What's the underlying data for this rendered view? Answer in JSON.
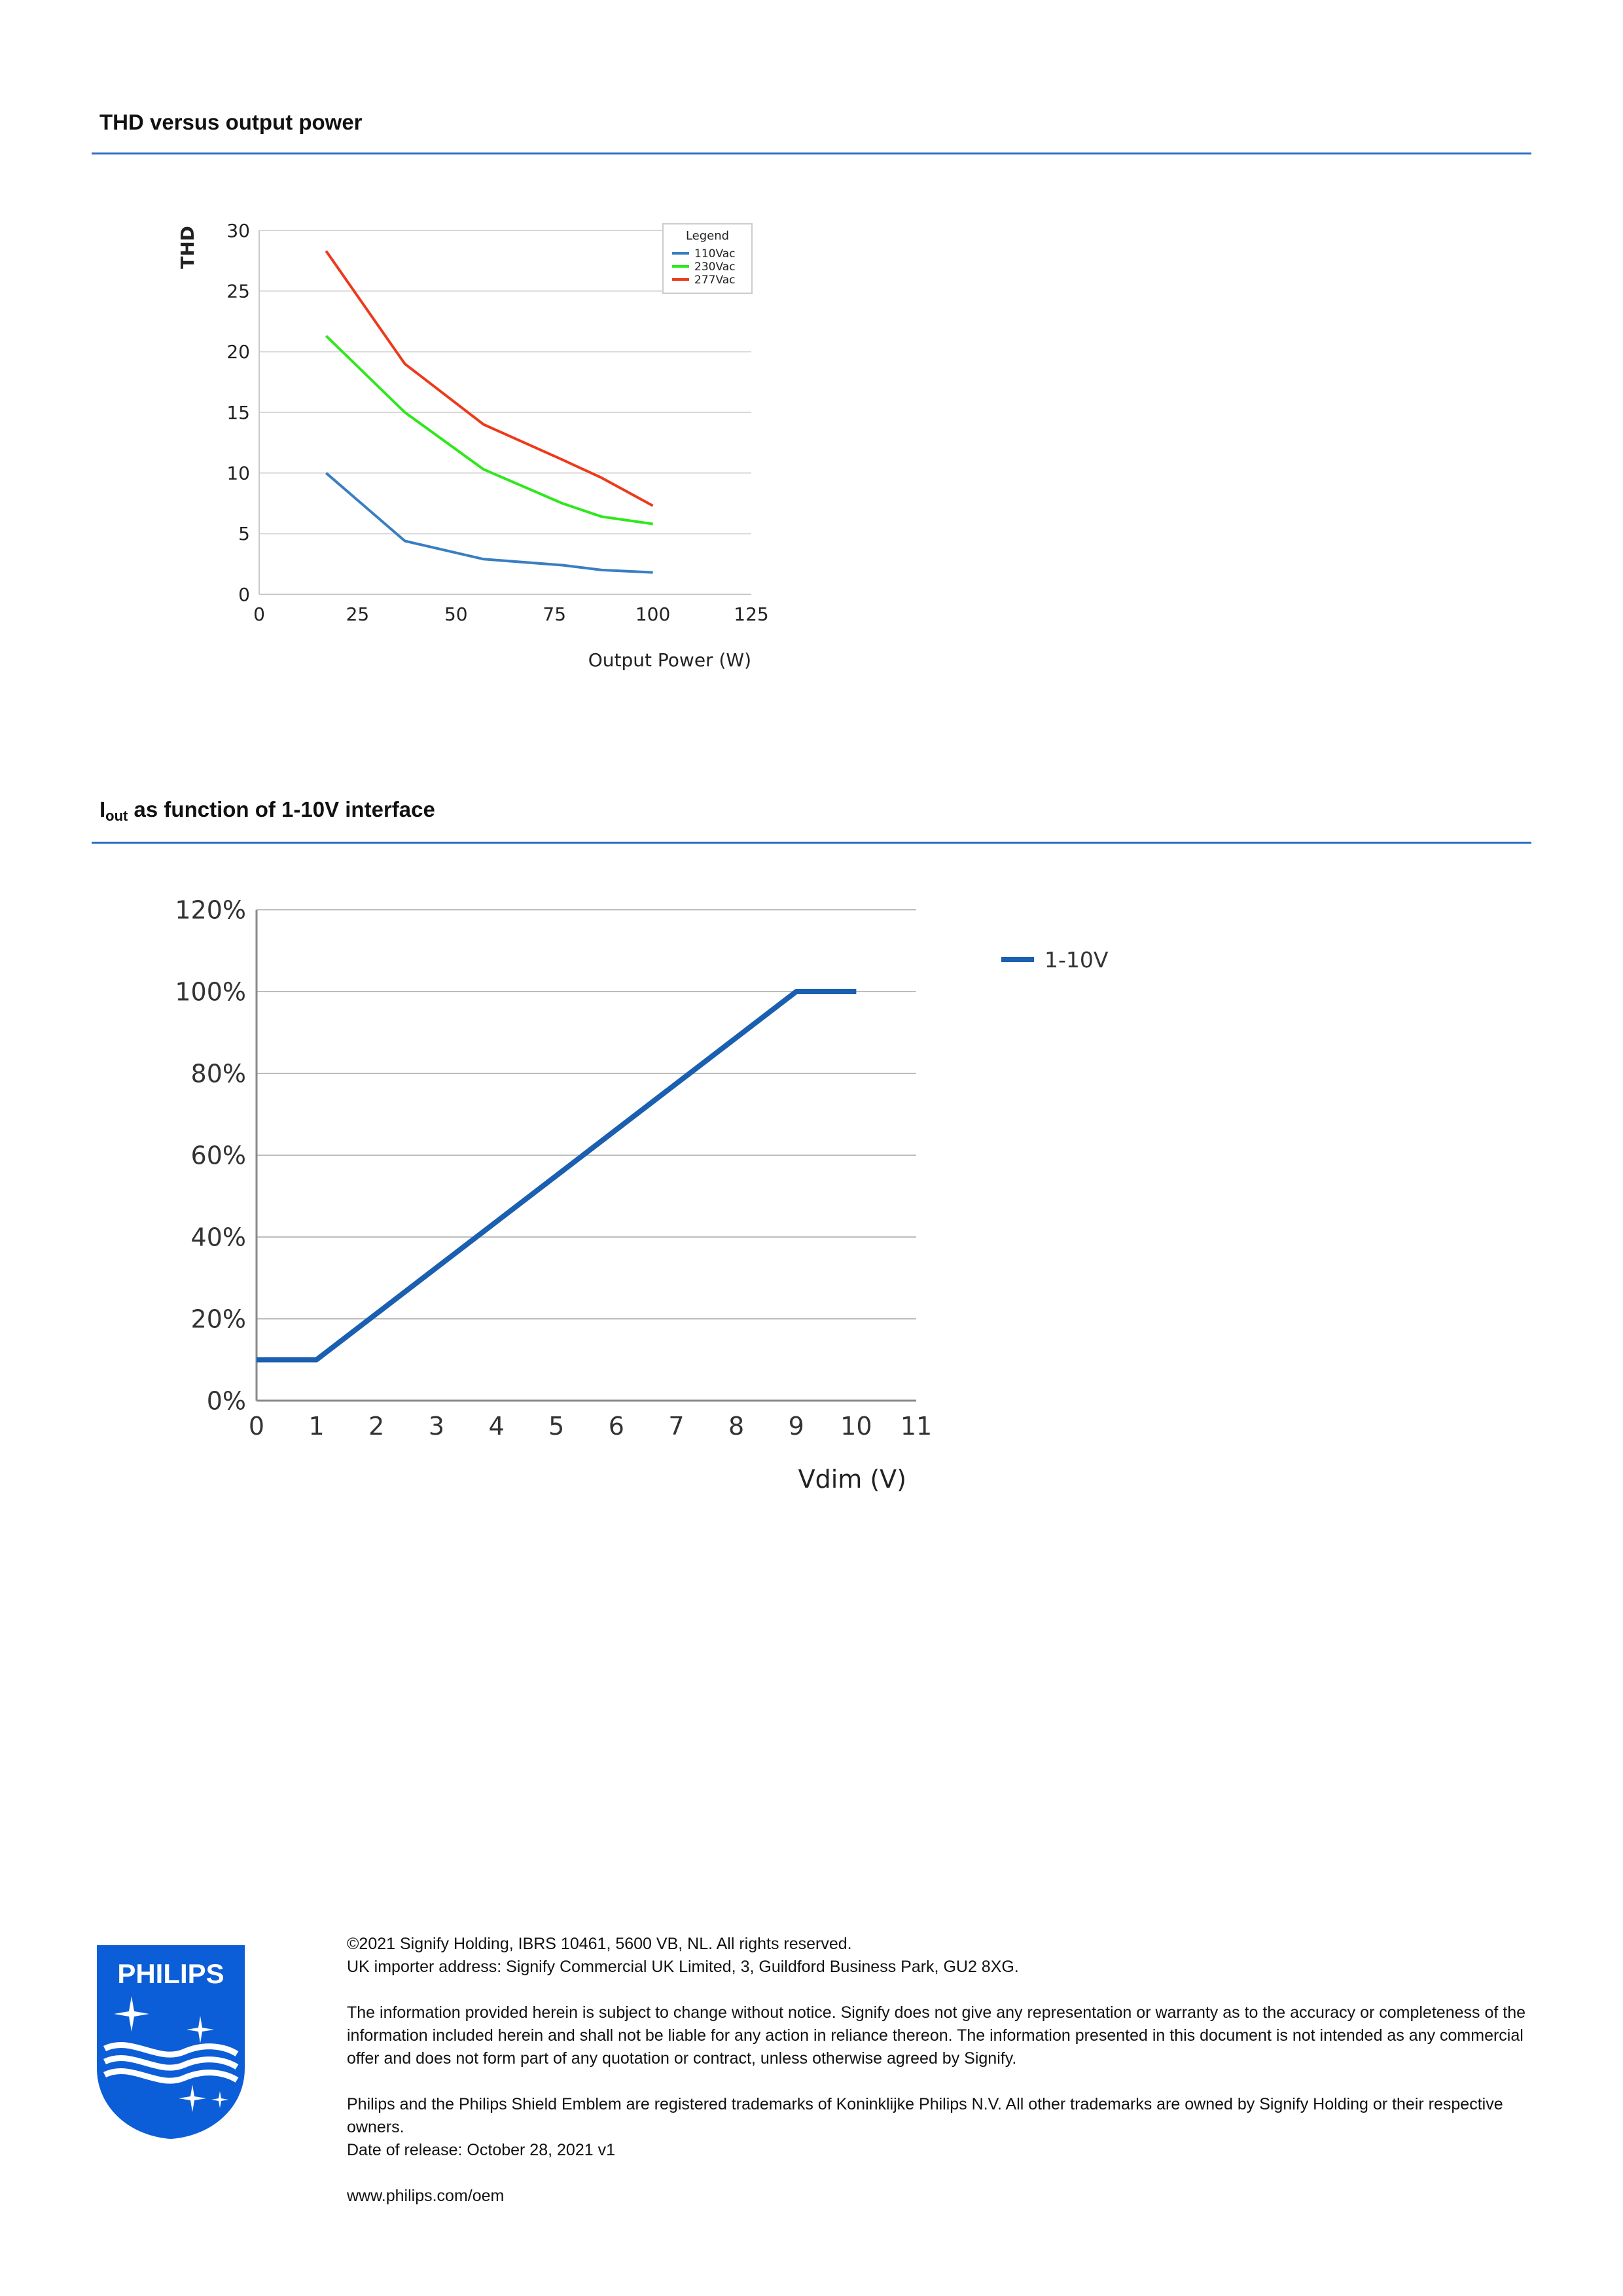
{
  "section1": {
    "title": "THD versus output power"
  },
  "section2": {
    "title_main": "I",
    "title_sub": "out",
    "title_rest": " as function of 1-10V interface"
  },
  "chart_data": [
    {
      "type": "line",
      "xlabel": "Output Power (W)",
      "ylabel": "THD",
      "xlim": [
        0,
        125
      ],
      "ylim": [
        0,
        30
      ],
      "x_ticks": [
        0,
        25,
        50,
        75,
        100,
        125
      ],
      "y_ticks": [
        0,
        5,
        10,
        15,
        20,
        25,
        30
      ],
      "x_tick_labels": [
        "0",
        "25",
        "50",
        "75",
        "100",
        "125"
      ],
      "y_tick_labels": [
        "0",
        "5",
        "10",
        "15",
        "20",
        "25",
        "30"
      ],
      "grid": "horizontal",
      "legend_title": "Legend",
      "legend_position": "top-right",
      "series": [
        {
          "name": "110Vac",
          "color": "#3a7ec2",
          "x": [
            17,
            37,
            57,
            77,
            87,
            100
          ],
          "y": [
            10.0,
            4.4,
            2.9,
            2.4,
            2.0,
            1.8
          ]
        },
        {
          "name": "230Vac",
          "color": "#2ee81c",
          "x": [
            17,
            37,
            57,
            77,
            87,
            100
          ],
          "y": [
            21.3,
            15.0,
            10.3,
            7.5,
            6.4,
            5.8
          ]
        },
        {
          "name": "277Vac",
          "color": "#ec3b1b",
          "x": [
            17,
            37,
            57,
            77,
            87,
            100
          ],
          "y": [
            28.3,
            19.0,
            14.0,
            11.1,
            9.6,
            7.3
          ]
        }
      ]
    },
    {
      "type": "line",
      "xlabel": "Vdim (V)",
      "xlim": [
        0,
        11
      ],
      "ylim": [
        0,
        120
      ],
      "x_ticks": [
        0,
        1,
        2,
        3,
        4,
        5,
        6,
        7,
        8,
        9,
        10,
        11
      ],
      "y_ticks": [
        0,
        20,
        40,
        60,
        80,
        100,
        120
      ],
      "x_tick_labels": [
        "0",
        "1",
        "2",
        "3",
        "4",
        "5",
        "6",
        "7",
        "8",
        "9",
        "10",
        "11"
      ],
      "y_tick_labels": [
        "0%",
        "20%",
        "40%",
        "60%",
        "80%",
        "100%",
        "120%"
      ],
      "grid": "horizontal",
      "legend_position": "right",
      "series": [
        {
          "name": "1-10V",
          "color": "#1a5fb0",
          "x": [
            0,
            1,
            9,
            10
          ],
          "y": [
            10,
            10,
            100,
            100
          ]
        }
      ]
    }
  ],
  "footer": {
    "logo_text": "PHILIPS",
    "copyright": "©2021 Signify Holding, IBRS 10461, 5600 VB, NL. All rights reserved.",
    "uk_importer": "UK importer address: Signify Commercial UK Limited, 3, Guildford Business Park, GU2 8XG.",
    "disclaimer": "The information provided herein is subject to change without notice. Signify does not give any representation or warranty as to the accuracy or completeness of the information included herein and shall not be liable for any action in reliance thereon. The information presented in this document is not intended as any commercial offer and does not form part of any quotation or contract, unless otherwise agreed by Signify.",
    "trademarks": "Philips and the Philips Shield Emblem are registered trademarks of Koninklijke Philips N.V. All other trademarks are owned by Signify Holding or their respective owners.",
    "release_date": "Date of release: October 28, 2021 v1",
    "website": "www.philips.com/oem"
  },
  "colors": {
    "accent": "#2a6bc4",
    "brand": "#0b5ed7"
  }
}
